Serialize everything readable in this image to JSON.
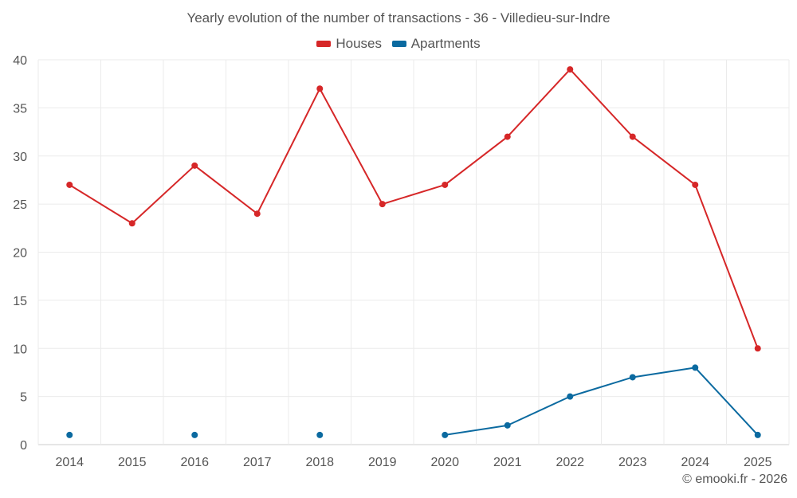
{
  "chart_data": {
    "type": "line",
    "title": "Yearly evolution of the number of transactions - 36 - Villedieu-sur-Indre",
    "xlabel": "",
    "ylabel": "",
    "categories": [
      "2014",
      "2015",
      "2016",
      "2017",
      "2018",
      "2019",
      "2020",
      "2021",
      "2022",
      "2023",
      "2024",
      "2025"
    ],
    "ylim": [
      0,
      40
    ],
    "yticks": [
      0,
      5,
      10,
      15,
      20,
      25,
      30,
      35,
      40
    ],
    "grid": true,
    "legend_position": "top-center",
    "series": [
      {
        "name": "Houses",
        "color": "#d62728",
        "values": [
          27,
          23,
          29,
          24,
          37,
          25,
          27,
          32,
          39,
          32,
          27,
          10
        ]
      },
      {
        "name": "Apartments",
        "color": "#0b6aa0",
        "values": [
          1,
          null,
          1,
          null,
          1,
          null,
          1,
          2,
          5,
          7,
          8,
          1
        ]
      }
    ]
  },
  "credit": "© emooki.fr - 2026"
}
